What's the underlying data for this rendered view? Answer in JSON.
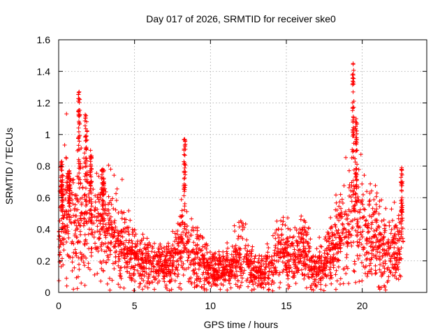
{
  "chart_data": {
    "type": "scatter",
    "title": "Day 017 of 2026, SRMTID for receiver ske0",
    "xlabel": "GPS time / hours",
    "ylabel": "SRMTID / TECUs",
    "xlim": [
      0,
      24.25
    ],
    "ylim": [
      0,
      1.6
    ],
    "xticks": [
      0,
      5,
      10,
      15,
      20
    ],
    "yticks": [
      0,
      0.2,
      0.4,
      0.6,
      0.8,
      1,
      1.2,
      1.4,
      1.6
    ],
    "xtick_labels": [
      "0",
      "5",
      "10",
      "15",
      "20"
    ],
    "ytick_labels": [
      "0",
      "0.2",
      "0.4",
      "0.6",
      "0.8",
      "1",
      "1.2",
      "1.4",
      "1.6"
    ],
    "grid": true,
    "marker": "+",
    "color": "#ff0000",
    "trend": [
      [
        0.0,
        0.42
      ],
      [
        0.5,
        0.48
      ],
      [
        1.0,
        0.42
      ],
      [
        1.4,
        0.55
      ],
      [
        1.8,
        0.45
      ],
      [
        2.5,
        0.42
      ],
      [
        3.0,
        0.45
      ],
      [
        3.5,
        0.38
      ],
      [
        4.0,
        0.3
      ],
      [
        5.0,
        0.22
      ],
      [
        6.0,
        0.18
      ],
      [
        7.0,
        0.16
      ],
      [
        7.5,
        0.2
      ],
      [
        8.3,
        0.32
      ],
      [
        9.0,
        0.22
      ],
      [
        10.0,
        0.14
      ],
      [
        11.0,
        0.16
      ],
      [
        12.0,
        0.24
      ],
      [
        12.5,
        0.2
      ],
      [
        13.2,
        0.11
      ],
      [
        14.0,
        0.16
      ],
      [
        14.6,
        0.28
      ],
      [
        15.5,
        0.2
      ],
      [
        16.2,
        0.3
      ],
      [
        16.8,
        0.15
      ],
      [
        17.5,
        0.18
      ],
      [
        18.0,
        0.28
      ],
      [
        18.5,
        0.35
      ],
      [
        19.0,
        0.42
      ],
      [
        19.5,
        0.55
      ],
      [
        20.0,
        0.38
      ],
      [
        20.5,
        0.4
      ],
      [
        21.0,
        0.3
      ],
      [
        21.5,
        0.26
      ],
      [
        22.0,
        0.25
      ],
      [
        22.6,
        0.3
      ]
    ],
    "spikes": [
      {
        "x": 0.2,
        "peak": 0.83,
        "width": 0.15
      },
      {
        "x": 0.7,
        "peak": 0.77,
        "width": 0.15
      },
      {
        "x": 1.35,
        "peak": 1.27,
        "width": 0.12
      },
      {
        "x": 1.8,
        "peak": 1.12,
        "width": 0.15
      },
      {
        "x": 2.1,
        "peak": 0.9,
        "width": 0.15
      },
      {
        "x": 2.9,
        "peak": 0.78,
        "width": 0.2
      },
      {
        "x": 8.3,
        "peak": 0.97,
        "width": 0.1
      },
      {
        "x": 19.4,
        "peak": 1.45,
        "width": 0.1
      },
      {
        "x": 19.6,
        "peak": 1.1,
        "width": 0.12
      },
      {
        "x": 22.6,
        "peak": 0.79,
        "width": 0.1
      }
    ],
    "x_end": 22.7,
    "point_count": 2600
  }
}
